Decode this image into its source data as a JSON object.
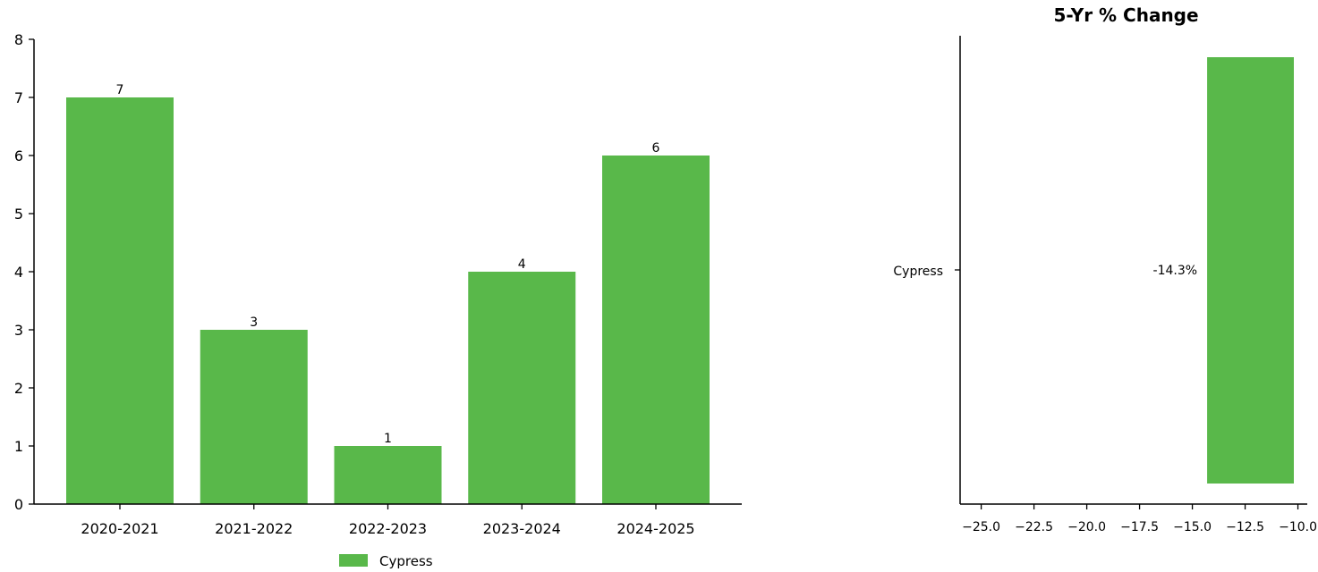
{
  "chart_data": [
    {
      "type": "bar",
      "orientation": "vertical",
      "categories": [
        "2020-2021",
        "2021-2022",
        "2022-2023",
        "2023-2024",
        "2024-2025"
      ],
      "series": [
        {
          "name": "Cypress",
          "values": [
            7,
            3,
            1,
            4,
            6
          ],
          "color": "#59b84a"
        }
      ],
      "data_labels": [
        "7",
        "3",
        "1",
        "4",
        "6"
      ],
      "title": "",
      "xlabel": "",
      "ylabel": "",
      "ylim": [
        0,
        8
      ],
      "yticks": [
        0,
        1,
        2,
        3,
        4,
        5,
        6,
        7,
        8
      ],
      "grid": false,
      "legend": {
        "position": "bottom-center",
        "entries": [
          "Cypress"
        ]
      }
    },
    {
      "type": "bar",
      "orientation": "horizontal",
      "title": "5-Yr % Change",
      "categories": [
        "Cypress"
      ],
      "values": [
        -14.3
      ],
      "data_labels": [
        "-14.3%"
      ],
      "color": "#59b84a",
      "xlim": [
        -26,
        -9.6
      ],
      "xticks": [
        -25.0,
        -22.5,
        -20.0,
        -17.5,
        -15.0,
        -12.5,
        -10.0
      ],
      "xtick_labels": [
        "−25.0",
        "−22.5",
        "−20.0",
        "−17.5",
        "−15.0",
        "−12.5",
        "−10.0"
      ],
      "xlabel": "",
      "ylabel": "",
      "grid": false
    }
  ]
}
